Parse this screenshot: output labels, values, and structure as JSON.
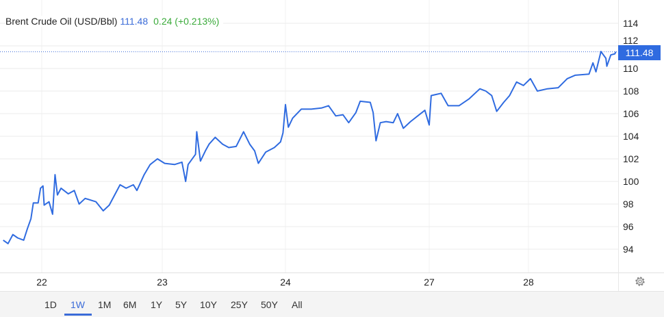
{
  "header": {
    "name": "Brent Crude Oil (USD/Bbl)",
    "price": "111.48",
    "change": "0.24 (+0.213%)"
  },
  "colors": {
    "line": "#2f6be0",
    "price": "#3a6bd8",
    "change": "#3aaa3a",
    "grid": "#ebebeb"
  },
  "ranges": {
    "items": [
      "1D",
      "1W",
      "1M",
      "6M",
      "1Y",
      "5Y",
      "10Y",
      "25Y",
      "50Y",
      "All"
    ],
    "active": "1W"
  },
  "settings_icon": "gear-icon",
  "chart_data": {
    "type": "line",
    "title": "Brent Crude Oil (USD/Bbl)",
    "last_value_label": "111.48",
    "ylim": [
      92,
      115.5
    ],
    "y_ticks": [
      94,
      96,
      98,
      100,
      102,
      104,
      106,
      108,
      110,
      112,
      114
    ],
    "x_tick_labels": [
      "22",
      "23",
      "24",
      "27",
      "28"
    ],
    "x_ticks": [
      22,
      23,
      24,
      27,
      28
    ],
    "grid": true,
    "series": [
      {
        "values": [
          [
            21.68,
            94.8
          ],
          [
            21.72,
            94.5
          ],
          [
            21.76,
            95.3
          ],
          [
            21.8,
            95.0
          ],
          [
            21.85,
            94.8
          ],
          [
            21.88,
            95.8
          ],
          [
            21.91,
            96.7
          ],
          [
            21.93,
            98.1
          ],
          [
            21.97,
            98.1
          ],
          [
            21.99,
            99.4
          ],
          [
            22.01,
            99.6
          ],
          [
            22.02,
            97.9
          ],
          [
            22.06,
            98.2
          ],
          [
            22.09,
            97.1
          ],
          [
            22.11,
            100.6
          ],
          [
            22.13,
            98.8
          ],
          [
            22.16,
            99.4
          ],
          [
            22.22,
            98.9
          ],
          [
            22.27,
            99.2
          ],
          [
            22.31,
            98.0
          ],
          [
            22.36,
            98.5
          ],
          [
            22.45,
            98.2
          ],
          [
            22.51,
            97.4
          ],
          [
            22.56,
            97.9
          ],
          [
            22.62,
            99.1
          ],
          [
            22.65,
            99.7
          ],
          [
            22.7,
            99.4
          ],
          [
            22.76,
            99.7
          ],
          [
            22.79,
            99.2
          ],
          [
            22.85,
            100.6
          ],
          [
            22.9,
            101.5
          ],
          [
            22.96,
            102.0
          ],
          [
            23.02,
            101.6
          ],
          [
            23.1,
            101.5
          ],
          [
            23.16,
            101.7
          ],
          [
            23.19,
            100.0
          ],
          [
            23.21,
            101.5
          ],
          [
            23.27,
            102.4
          ],
          [
            23.28,
            104.4
          ],
          [
            23.31,
            101.8
          ],
          [
            23.35,
            102.7
          ],
          [
            23.38,
            103.3
          ],
          [
            23.43,
            103.9
          ],
          [
            23.49,
            103.3
          ],
          [
            23.54,
            103.0
          ],
          [
            23.6,
            103.1
          ],
          [
            23.66,
            104.4
          ],
          [
            23.71,
            103.3
          ],
          [
            23.75,
            102.7
          ],
          [
            23.78,
            101.6
          ],
          [
            23.84,
            102.6
          ],
          [
            23.91,
            103.0
          ],
          [
            23.96,
            103.5
          ],
          [
            23.98,
            104.3
          ],
          [
            24.0,
            106.8
          ],
          [
            24.02,
            104.8
          ],
          [
            24.05,
            105.6
          ],
          [
            24.11,
            106.4
          ],
          [
            24.18,
            106.4
          ],
          [
            24.25,
            106.5
          ],
          [
            24.3,
            106.7
          ],
          [
            24.35,
            105.8
          ],
          [
            24.4,
            105.9
          ],
          [
            24.44,
            105.2
          ],
          [
            24.49,
            106.1
          ],
          [
            24.52,
            107.1
          ],
          [
            24.59,
            107.0
          ],
          [
            24.61,
            106.1
          ],
          [
            24.63,
            103.6
          ],
          [
            24.66,
            105.2
          ],
          [
            24.7,
            105.3
          ],
          [
            24.75,
            105.2
          ],
          [
            24.78,
            106.0
          ],
          [
            24.82,
            104.7
          ],
          [
            24.87,
            105.3
          ],
          [
            24.92,
            105.8
          ],
          [
            24.97,
            106.3
          ],
          [
            27.0,
            105.0
          ],
          [
            27.02,
            107.6
          ],
          [
            27.12,
            107.8
          ],
          [
            27.19,
            106.7
          ],
          [
            27.3,
            106.7
          ],
          [
            27.4,
            107.3
          ],
          [
            27.51,
            108.2
          ],
          [
            27.57,
            108.0
          ],
          [
            27.63,
            107.6
          ],
          [
            27.68,
            106.2
          ],
          [
            27.75,
            107.0
          ],
          [
            27.81,
            107.6
          ],
          [
            27.88,
            108.8
          ],
          [
            27.95,
            108.5
          ],
          [
            28.02,
            109.1
          ],
          [
            28.09,
            108.0
          ],
          [
            28.19,
            108.2
          ],
          [
            28.3,
            108.3
          ],
          [
            28.39,
            109.1
          ],
          [
            28.47,
            109.4
          ],
          [
            28.61,
            109.5
          ],
          [
            28.65,
            110.5
          ],
          [
            28.68,
            109.7
          ],
          [
            28.73,
            111.5
          ],
          [
            28.78,
            110.9
          ],
          [
            28.79,
            110.2
          ],
          [
            28.83,
            111.2
          ],
          [
            28.87,
            111.3
          ],
          [
            28.88,
            111.48
          ]
        ]
      }
    ]
  }
}
